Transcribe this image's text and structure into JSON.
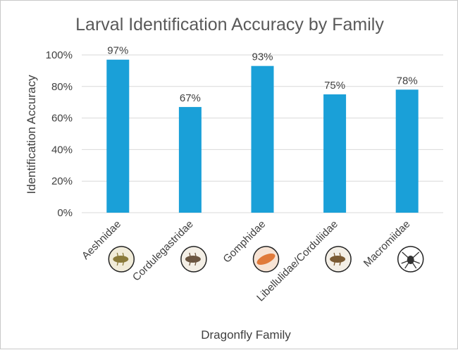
{
  "chart_data": {
    "type": "bar",
    "title": "Larval Identification Accuracy by Family",
    "xlabel": "Dragonfly Family",
    "ylabel": "Identification Accuracy",
    "categories": [
      "Aeshnidae",
      "Cordulegastridae",
      "Gomphidae",
      "Libellulidae/Corduliidae",
      "Macromiidae"
    ],
    "values": [
      97,
      67,
      93,
      75,
      78
    ],
    "data_labels": [
      "97%",
      "67%",
      "93%",
      "75%",
      "78%"
    ],
    "ylim": [
      0,
      100
    ],
    "yticks": [
      "0%",
      "20%",
      "40%",
      "60%",
      "80%",
      "100%"
    ],
    "grid": true,
    "legend": "none",
    "bar_color": "#1aa0d8",
    "larva_icons": [
      "aeshnidae-larva-icon",
      "cordulegastridae-larva-icon",
      "gomphidae-larva-icon",
      "libellulidae-larva-icon",
      "macromiidae-larva-icon"
    ]
  }
}
